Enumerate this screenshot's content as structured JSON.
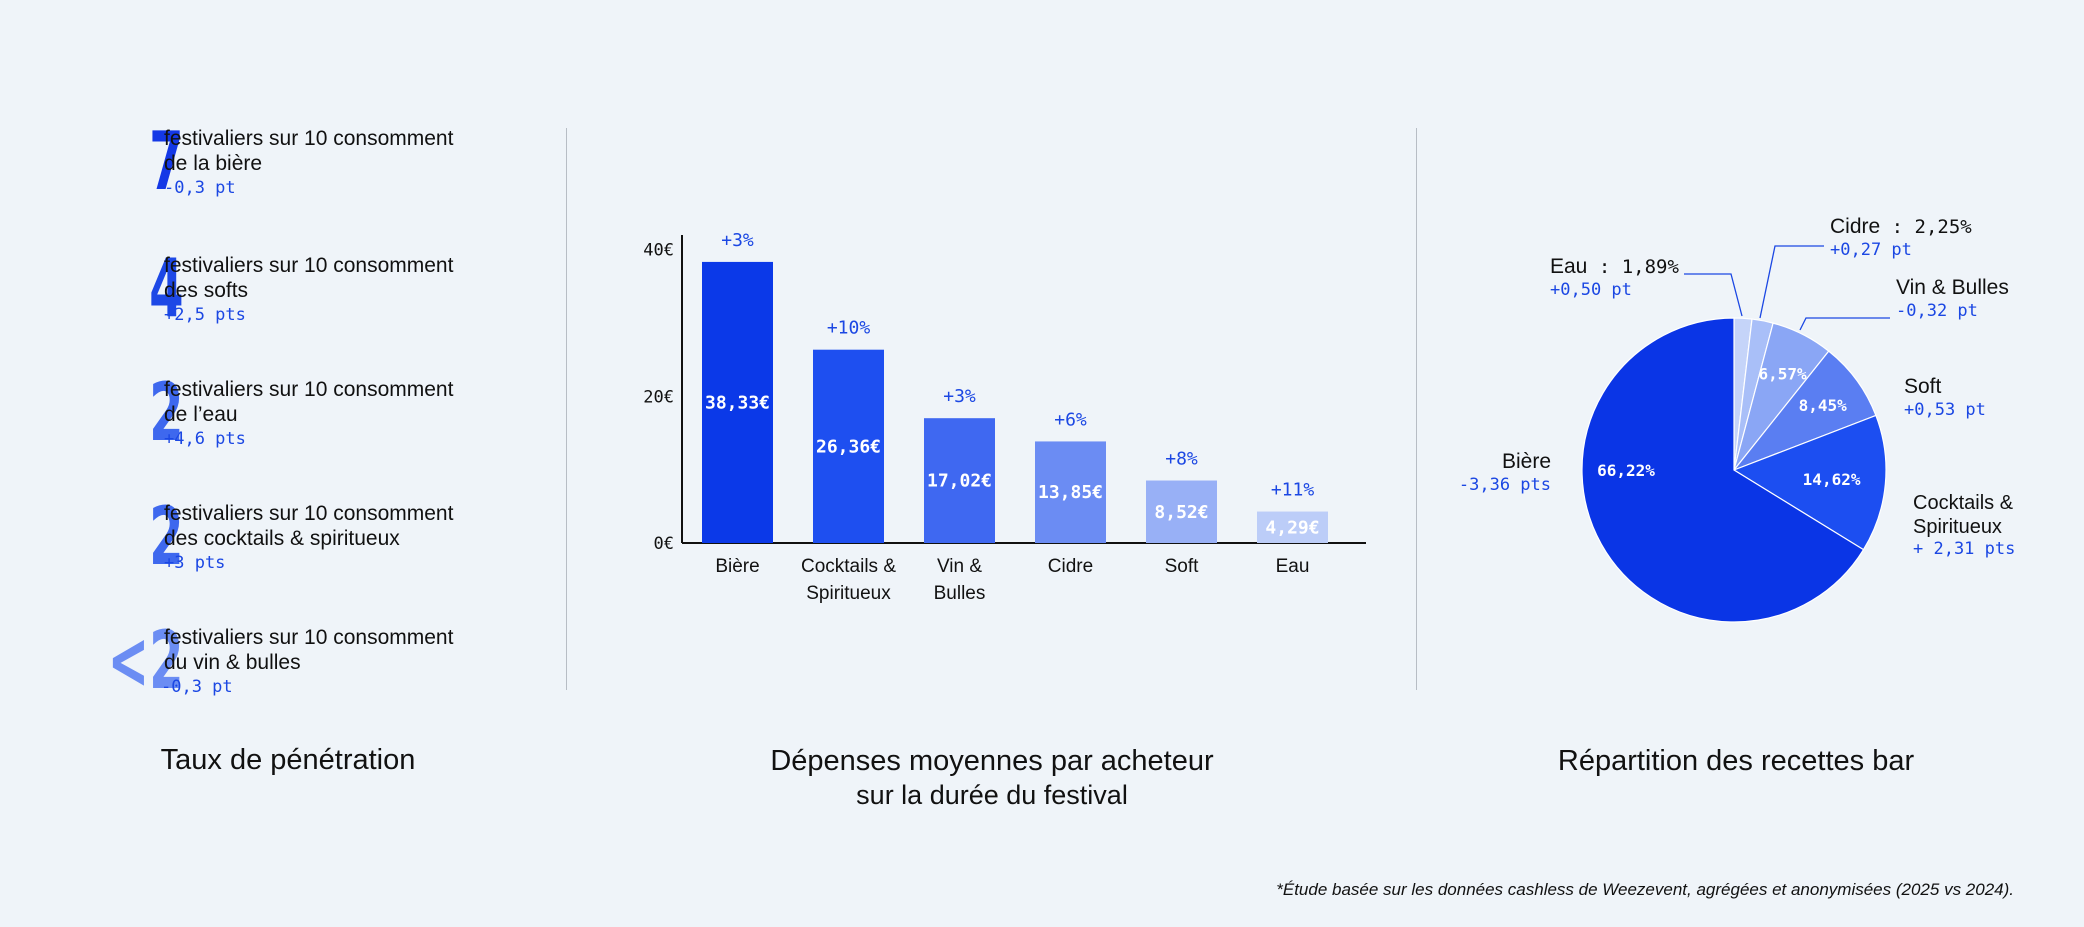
{
  "penetration": {
    "title": "Taux de pénétration",
    "items": [
      {
        "number": "7",
        "line1": "festivaliers sur 10 consomment",
        "line2": "de la bière",
        "delta": "-0,3 pt",
        "color": "#1438e6"
      },
      {
        "number": "4",
        "line1": "festivaliers sur 10 consomment",
        "line2": "des softs",
        "delta": "+2,5 pts",
        "color": "#1d48e6"
      },
      {
        "number": "2",
        "line1": "festivaliers sur 10 consomment",
        "line2": "de l’eau",
        "delta": "+4,6 pts",
        "color": "#3e68ee"
      },
      {
        "number": "2",
        "line1": "festivaliers sur 10 consomment",
        "line2": "des cocktails & spiritueux",
        "delta": "+3 pts",
        "color": "#3e68ee"
      },
      {
        "number": "<2",
        "line1": "festivaliers sur 10 consomment",
        "line2": "du vin & bulles",
        "delta": "-0,3 pt",
        "color": "#6b8df3"
      }
    ]
  },
  "spending": {
    "title": "Dépenses moyennes par acheteur",
    "subtitle": "sur la durée du festival"
  },
  "revenue": {
    "title": "Répartition des recettes bar"
  },
  "footnote": "*Étude basée sur les données cashless de Weezevent, agrégées et anonymisées (2025 vs 2024).",
  "chart_data": [
    {
      "type": "bar",
      "categories": [
        "Bière",
        "Cocktails & Spiritueux",
        "Vin & Bulles",
        "Cidre",
        "Soft",
        "Eau"
      ],
      "category_lines": [
        [
          "Bière"
        ],
        [
          "Cocktails &",
          "Spiritueux"
        ],
        [
          "Vin &",
          "Bulles"
        ],
        [
          "Cidre"
        ],
        [
          "Soft"
        ],
        [
          "Eau"
        ]
      ],
      "values": [
        38.33,
        26.36,
        17.02,
        13.85,
        8.52,
        4.29
      ],
      "value_labels": [
        "38,33€",
        "26,36€",
        "17,02€",
        "13,85€",
        "8,52€",
        "4,29€"
      ],
      "changes": [
        "+3%",
        "+10%",
        "+3%",
        "+6%",
        "+8%",
        "+11%"
      ],
      "colors": [
        "#0b39e8",
        "#1e4ff0",
        "#3f68f1",
        "#6b8cf3",
        "#98b0f6",
        "#bccdf8"
      ],
      "yticks": [
        {
          "v": 0,
          "label": "0€"
        },
        {
          "v": 20,
          "label": "20€"
        },
        {
          "v": 40,
          "label": "40€"
        }
      ],
      "ylim": [
        0,
        42
      ],
      "grid": false
    },
    {
      "type": "pie",
      "slices": [
        {
          "name": "Eau",
          "value": 1.89,
          "value_label": "1,89%",
          "delta": "+0,50 pt",
          "color": "#c5d4f9",
          "show_inside": false
        },
        {
          "name": "Cidre",
          "value": 2.25,
          "value_label": "2,25%",
          "delta": "+0,27 pt",
          "color": "#a9bff8",
          "show_inside": false
        },
        {
          "name": "Vin & Bulles",
          "value": 6.57,
          "value_label": "6,57%",
          "delta": "-0,32 pt",
          "color": "#8aa6f5",
          "show_inside": true
        },
        {
          "name": "Soft",
          "value": 8.45,
          "value_label": "8,45%",
          "delta": "+0,53 pt",
          "color": "#5a7ef2",
          "show_inside": true
        },
        {
          "name": "Cocktails & Spiritueux",
          "value": 14.62,
          "value_label": "14,62%",
          "delta": "+ 2,31 pts",
          "color": "#1c4ef1",
          "show_inside": true
        },
        {
          "name": "Bière",
          "value": 66.22,
          "value_label": "66,22%",
          "delta": "-3,36 pts",
          "color": "#0a35e6",
          "show_inside": true
        }
      ]
    }
  ]
}
